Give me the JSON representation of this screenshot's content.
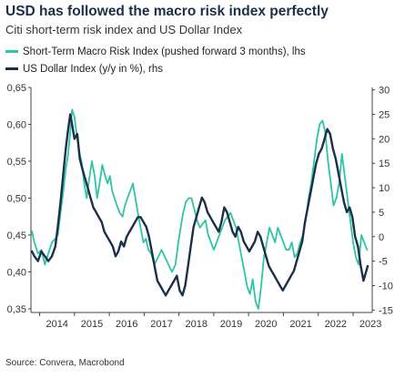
{
  "header": {
    "title": "USD has followed the macro risk index perfectly",
    "subtitle": "Citi short-term risk index and US Dollar Index"
  },
  "footer": {
    "source": "Source: Convera, Macrobond"
  },
  "chart_data": {
    "type": "line",
    "title": "USD has followed the macro risk index perfectly",
    "subtitle": "Citi short-term risk index and US Dollar Index",
    "x_range": [
      2013.75,
      2023.55
    ],
    "x_ticks": [
      "2014",
      "2015",
      "2016",
      "2017",
      "2018",
      "2019",
      "2020",
      "2021",
      "2022",
      "2023"
    ],
    "y_left": {
      "range": [
        0.345,
        0.65
      ],
      "ticks": [
        "0,65",
        "0,60",
        "0,55",
        "0,50",
        "0,45",
        "0,40",
        "0,35"
      ]
    },
    "y_right": {
      "range": [
        -15.5,
        30.5
      ],
      "ticks": [
        "30",
        "25",
        "20",
        "15",
        "10",
        "5",
        "0",
        "-5",
        "-10",
        "-15"
      ]
    },
    "grid": false,
    "legend_position": "top-left",
    "series": [
      {
        "name": "Short-Term Macro Risk Index (pushed forward 3 months), lhs",
        "axis": "left",
        "color": "#2ec4a6",
        "x": [
          2013.78,
          2013.85,
          2013.95,
          2014.05,
          2014.15,
          2014.25,
          2014.35,
          2014.45,
          2014.52,
          2014.6,
          2014.68,
          2014.75,
          2014.82,
          2014.88,
          2014.93,
          2015.0,
          2015.08,
          2015.15,
          2015.2,
          2015.28,
          2015.35,
          2015.42,
          2015.5,
          2015.58,
          2015.65,
          2015.72,
          2015.8,
          2015.88,
          2015.95,
          2016.02,
          2016.08,
          2016.15,
          2016.22,
          2016.3,
          2016.38,
          2016.45,
          2016.52,
          2016.6,
          2016.68,
          2016.75,
          2016.82,
          2016.9,
          2016.98,
          2017.05,
          2017.12,
          2017.2,
          2017.3,
          2017.4,
          2017.5,
          2017.6,
          2017.7,
          2017.8,
          2017.9,
          2017.98,
          2018.05,
          2018.12,
          2018.2,
          2018.28,
          2018.36,
          2018.44,
          2018.52,
          2018.6,
          2018.68,
          2018.76,
          2018.84,
          2018.92,
          2019.0,
          2019.08,
          2019.16,
          2019.24,
          2019.32,
          2019.4,
          2019.48,
          2019.56,
          2019.64,
          2019.72,
          2019.8,
          2019.88,
          2019.96,
          2020.04,
          2020.12,
          2020.2,
          2020.28,
          2020.36,
          2020.44,
          2020.52,
          2020.6,
          2020.68,
          2020.76,
          2020.84,
          2020.92,
          2021.0,
          2021.08,
          2021.16,
          2021.24,
          2021.32,
          2021.4,
          2021.48,
          2021.56,
          2021.64,
          2021.72,
          2021.8,
          2021.88,
          2021.96,
          2022.04,
          2022.12,
          2022.2,
          2022.28,
          2022.36,
          2022.44,
          2022.52,
          2022.6,
          2022.68,
          2022.76,
          2022.84,
          2022.92,
          2023.0,
          2023.08,
          2023.16,
          2023.24,
          2023.32,
          2023.4
        ],
        "values": [
          0.455,
          0.44,
          0.425,
          0.43,
          0.41,
          0.425,
          0.44,
          0.445,
          0.45,
          0.48,
          0.51,
          0.54,
          0.56,
          0.59,
          0.62,
          0.61,
          0.58,
          0.56,
          0.55,
          0.52,
          0.5,
          0.525,
          0.55,
          0.53,
          0.5,
          0.52,
          0.545,
          0.53,
          0.52,
          0.53,
          0.51,
          0.5,
          0.49,
          0.48,
          0.475,
          0.49,
          0.5,
          0.51,
          0.52,
          0.5,
          0.48,
          0.46,
          0.44,
          0.445,
          0.43,
          0.425,
          0.41,
          0.42,
          0.43,
          0.42,
          0.41,
          0.4,
          0.41,
          0.44,
          0.46,
          0.48,
          0.495,
          0.5,
          0.5,
          0.485,
          0.47,
          0.46,
          0.465,
          0.47,
          0.45,
          0.44,
          0.43,
          0.44,
          0.45,
          0.46,
          0.47,
          0.475,
          0.48,
          0.47,
          0.46,
          0.44,
          0.42,
          0.4,
          0.38,
          0.37,
          0.39,
          0.36,
          0.35,
          0.38,
          0.42,
          0.44,
          0.46,
          0.45,
          0.44,
          0.46,
          0.45,
          0.44,
          0.43,
          0.43,
          0.44,
          0.42,
          0.425,
          0.44,
          0.45,
          0.47,
          0.5,
          0.52,
          0.55,
          0.58,
          0.6,
          0.605,
          0.59,
          0.55,
          0.52,
          0.49,
          0.5,
          0.52,
          0.56,
          0.53,
          0.5,
          0.47,
          0.44,
          0.42,
          0.41,
          0.45,
          0.44,
          0.43
        ]
      },
      {
        "name": "US Dollar Index (y/y in %), rhs",
        "axis": "right",
        "color": "#1c2f4a",
        "x": [
          2013.78,
          2013.85,
          2013.95,
          2014.05,
          2014.15,
          2014.25,
          2014.35,
          2014.45,
          2014.52,
          2014.6,
          2014.68,
          2014.75,
          2014.82,
          2014.88,
          2014.93,
          2015.0,
          2015.08,
          2015.15,
          2015.22,
          2015.3,
          2015.38,
          2015.46,
          2015.54,
          2015.62,
          2015.7,
          2015.78,
          2015.86,
          2015.94,
          2016.02,
          2016.1,
          2016.18,
          2016.26,
          2016.34,
          2016.42,
          2016.5,
          2016.58,
          2016.66,
          2016.74,
          2016.82,
          2016.9,
          2016.98,
          2017.06,
          2017.14,
          2017.22,
          2017.3,
          2017.38,
          2017.46,
          2017.54,
          2017.62,
          2017.7,
          2017.78,
          2017.86,
          2017.94,
          2018.02,
          2018.1,
          2018.18,
          2018.26,
          2018.34,
          2018.42,
          2018.5,
          2018.58,
          2018.66,
          2018.74,
          2018.82,
          2018.9,
          2018.98,
          2019.06,
          2019.14,
          2019.22,
          2019.3,
          2019.38,
          2019.46,
          2019.54,
          2019.62,
          2019.7,
          2019.78,
          2019.86,
          2019.94,
          2020.02,
          2020.1,
          2020.18,
          2020.26,
          2020.34,
          2020.42,
          2020.5,
          2020.58,
          2020.66,
          2020.74,
          2020.82,
          2020.9,
          2020.98,
          2021.06,
          2021.14,
          2021.22,
          2021.3,
          2021.38,
          2021.46,
          2021.54,
          2021.62,
          2021.7,
          2021.78,
          2021.86,
          2021.94,
          2022.02,
          2022.1,
          2022.18,
          2022.26,
          2022.34,
          2022.42,
          2022.5,
          2022.58,
          2022.66,
          2022.74,
          2022.82,
          2022.9,
          2022.98,
          2023.06,
          2023.14,
          2023.22,
          2023.3,
          2023.38,
          2023.42
        ],
        "values": [
          -3,
          -4,
          -5,
          -3,
          -4,
          -5,
          -4,
          -2,
          2,
          7,
          13,
          18,
          22,
          25,
          23,
          20,
          21,
          16,
          14,
          12,
          10,
          8,
          6,
          5,
          4,
          3,
          1,
          0,
          -1,
          -2,
          -4,
          -3,
          -1,
          -2,
          0,
          1,
          2,
          3,
          4,
          4,
          3,
          2,
          0,
          -3,
          -6,
          -9,
          -10,
          -11,
          -12,
          -11,
          -10,
          -9,
          -8,
          -11,
          -12,
          -10,
          -6,
          -2,
          2,
          4,
          6,
          8,
          7,
          5,
          4,
          3,
          2,
          1,
          3,
          6,
          5,
          3,
          1,
          0,
          2,
          1,
          -1,
          -2,
          -3,
          -2,
          -1,
          1,
          0,
          -2,
          -4,
          -6,
          -7,
          -8,
          -9,
          -10,
          -11,
          -10,
          -9,
          -8,
          -7,
          -5,
          -3,
          -1,
          3,
          6,
          9,
          12,
          15,
          17,
          18,
          20,
          22,
          21,
          18,
          16,
          13,
          10,
          7,
          5,
          6,
          4,
          0,
          -2,
          -6,
          -9,
          -7,
          -6
        ]
      }
    ]
  }
}
